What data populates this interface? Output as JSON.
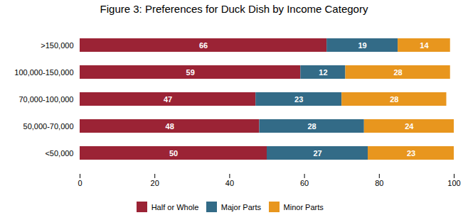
{
  "chart_data": {
    "type": "bar",
    "orientation": "horizontal",
    "stacked": true,
    "data_labels": true,
    "title": "Figure 3: Preferences for Duck Dish by Income Category",
    "categories": [
      ">150,000",
      "100,000-150,000",
      "70,000-100,000",
      "50,000-70,000",
      "<50,000"
    ],
    "series": [
      {
        "name": "Half or Whole",
        "color": "#9B2335",
        "values": [
          66,
          59,
          47,
          48,
          50
        ]
      },
      {
        "name": "Major Parts",
        "color": "#336B87",
        "values": [
          19,
          12,
          23,
          28,
          27
        ]
      },
      {
        "name": "Minor Parts",
        "color": "#E8961E",
        "values": [
          14,
          28,
          28,
          24,
          23
        ]
      }
    ],
    "xlim": [
      0,
      100
    ],
    "xticks": [
      0,
      20,
      40,
      60,
      80,
      100
    ],
    "grid": false,
    "legend": "bottom"
  }
}
